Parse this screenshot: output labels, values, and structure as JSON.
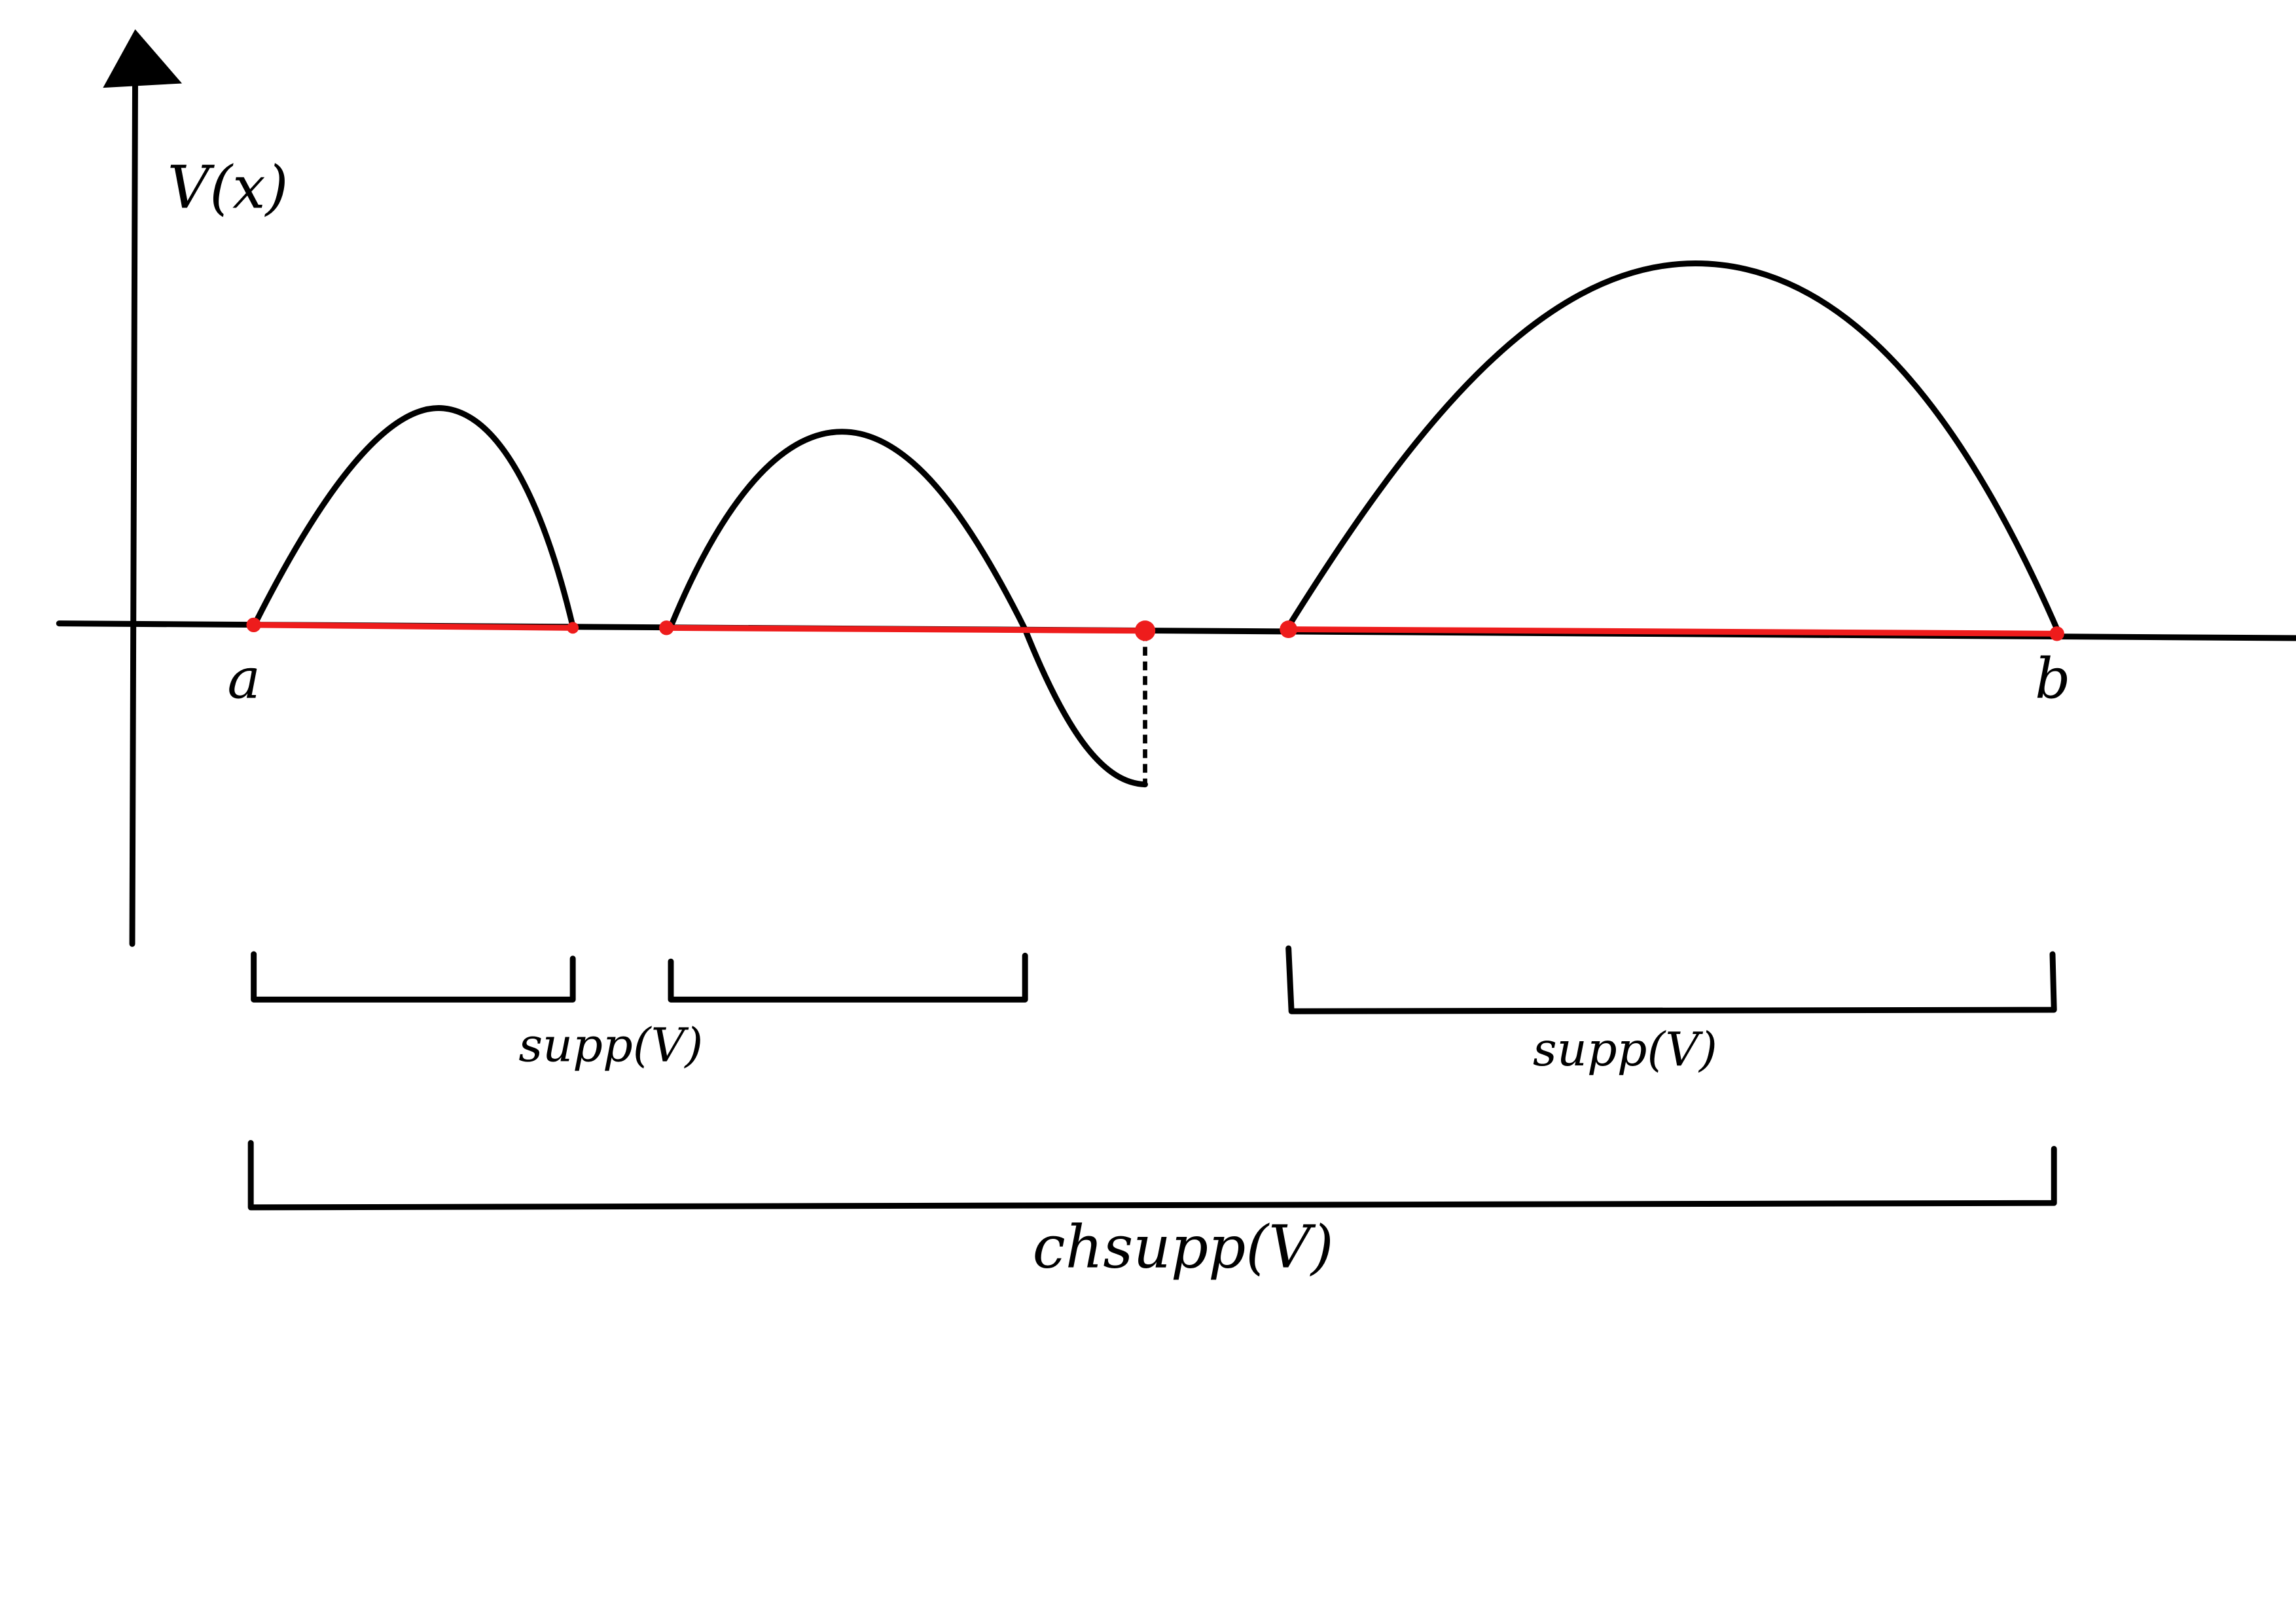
{
  "axis_label": "V(x)",
  "points": {
    "start": "a",
    "end": "b"
  },
  "brackets": [
    {
      "label": "supp(V)"
    },
    {
      "label": "supp(V)"
    }
  ],
  "hull_label": "chsupp(V)"
}
